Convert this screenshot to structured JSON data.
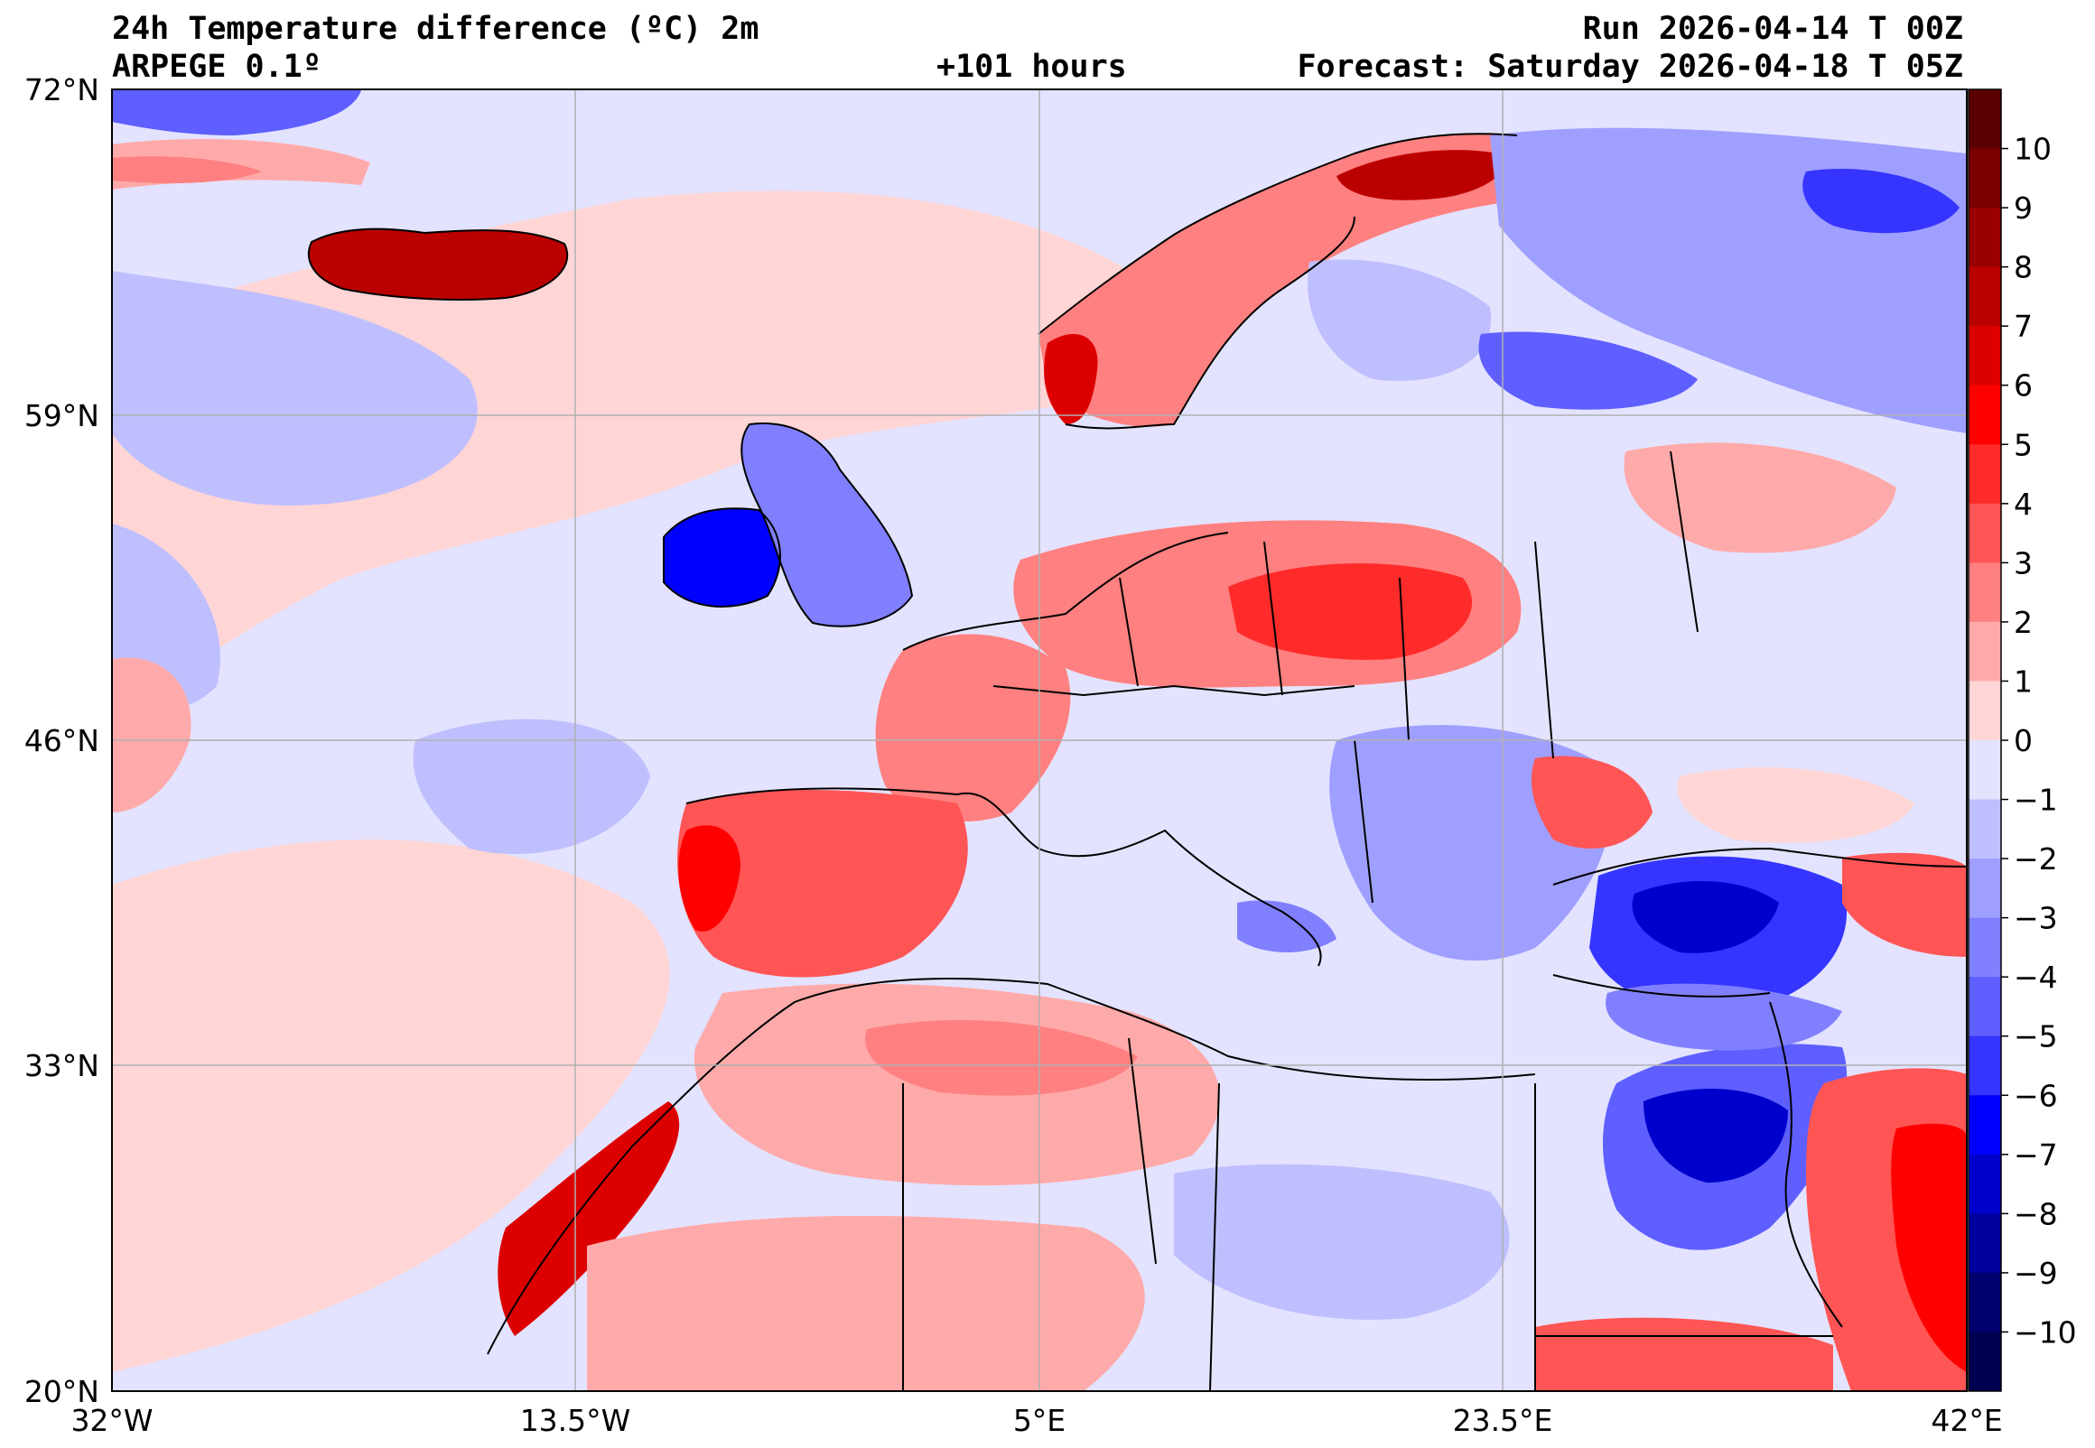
{
  "header": {
    "title": "24h Temperature difference (ºC) 2m",
    "model": "ARPEGE 0.1º",
    "lead": "+101 hours",
    "run": "Run 2026-04-14 T 00Z",
    "forecast": "Forecast: Saturday 2026-04-18 T 05Z"
  },
  "axes": {
    "lat_labels": [
      "72°N",
      "59°N",
      "46°N",
      "33°N",
      "20°N"
    ],
    "lon_labels": [
      "32°W",
      "13.5°W",
      "5°E",
      "23.5°E",
      "42°E"
    ]
  },
  "colorbar": {
    "ticks": [
      "10",
      "9",
      "8",
      "7",
      "6",
      "5",
      "4",
      "3",
      "2",
      "1",
      "0",
      "−1",
      "−2",
      "−3",
      "−4",
      "−5",
      "−6",
      "−7",
      "−8",
      "−9",
      "−10"
    ],
    "colors": [
      "#5a0000",
      "#7a0000",
      "#9a0000",
      "#bb0000",
      "#dd0000",
      "#ff0000",
      "#ff2b2b",
      "#ff5555",
      "#ff8080",
      "#ffaaaa",
      "#ffd5d5",
      "#e3e3ff",
      "#bfbfff",
      "#9f9fff",
      "#8080ff",
      "#5f5fff",
      "#3535ff",
      "#0000ff",
      "#0000cc",
      "#00009c",
      "#00006e",
      "#000050"
    ]
  },
  "colors": {
    "background_field": "#e3e3ff",
    "grid": "#b0b0b0",
    "coast": "#000000"
  }
}
